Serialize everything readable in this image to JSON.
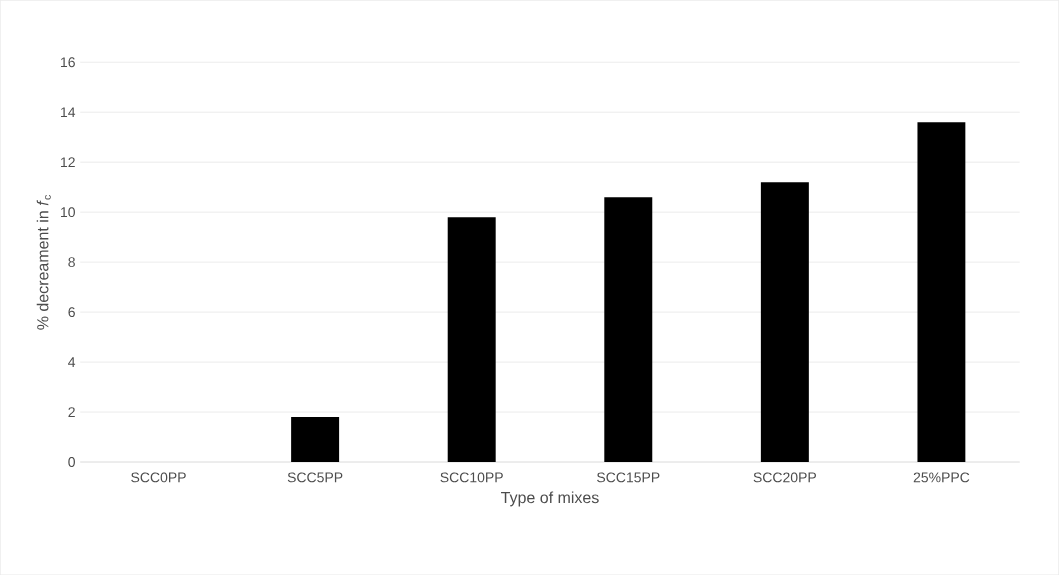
{
  "chart_data": {
    "type": "bar",
    "xlabel": "Type of mixes",
    "ylabel": "% decreament in *f*$_{c}$",
    "categories": [
      "SCC0PP",
      "SCC5PP",
      "SCC10PP",
      "SCC15PP",
      "SCC20PP",
      "25%PPC"
    ],
    "values": [
      0,
      1.8,
      9.8,
      10.6,
      11.2,
      13.6
    ],
    "color": "#000000",
    "ylim": [
      0,
      16
    ],
    "yticks": [
      0,
      2,
      4,
      6,
      8,
      10,
      12,
      14,
      16
    ],
    "grid": "y"
  }
}
